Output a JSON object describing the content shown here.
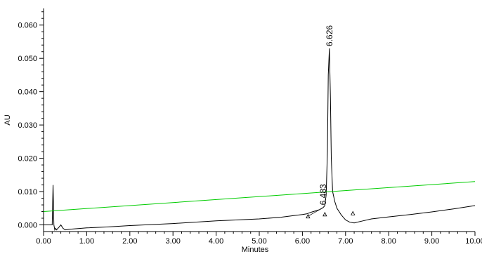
{
  "chart_data": {
    "type": "line",
    "xlabel": "Minutes",
    "ylabel": "AU",
    "xlim": [
      0.0,
      10.0
    ],
    "ylim": [
      -0.002,
      0.065
    ],
    "x_ticks": [
      "0.00",
      "1.00",
      "2.00",
      "3.00",
      "4.00",
      "5.00",
      "6.00",
      "7.00",
      "8.00",
      "9.00",
      "10.00"
    ],
    "y_ticks": [
      "0.000",
      "0.010",
      "0.020",
      "0.030",
      "0.040",
      "0.050",
      "0.060"
    ],
    "grid": false,
    "series": [
      {
        "color": "#000000",
        "x": [
          0.0,
          0.2,
          0.22,
          0.24,
          0.26,
          0.28,
          0.3,
          0.35,
          0.4,
          0.45,
          0.5,
          0.55,
          0.6,
          0.7,
          0.8,
          0.9,
          1.0,
          1.5,
          2.0,
          3.0,
          4.0,
          5.0,
          5.5,
          5.8,
          6.0,
          6.1,
          6.2,
          6.3,
          6.4,
          6.48,
          6.52,
          6.55,
          6.58,
          6.6,
          6.626,
          6.65,
          6.67,
          6.7,
          6.75,
          6.8,
          6.9,
          7.0,
          7.1,
          7.2,
          7.4,
          7.6,
          8.0,
          8.5,
          9.0,
          9.5,
          10.0
        ],
        "y": [
          0.0,
          0.0,
          0.012,
          0.0,
          -0.0015,
          -0.001,
          -0.0015,
          -0.0008,
          0.0,
          -0.001,
          -0.0015,
          -0.0014,
          -0.0013,
          -0.0012,
          -0.0011,
          -0.001,
          -0.0009,
          -0.0006,
          -0.0002,
          0.0004,
          0.0012,
          0.0018,
          0.0023,
          0.0028,
          0.0031,
          0.0033,
          0.0038,
          0.0042,
          0.0046,
          0.0052,
          0.0058,
          0.009,
          0.022,
          0.045,
          0.053,
          0.038,
          0.02,
          0.01,
          0.007,
          0.005,
          0.003,
          0.0015,
          0.0008,
          0.0006,
          0.0012,
          0.0018,
          0.0024,
          0.0031,
          0.0039,
          0.0048,
          0.0058
        ]
      },
      {
        "color": "#00cc00",
        "x": [
          0.0,
          10.0
        ],
        "y": [
          0.004,
          0.013
        ]
      }
    ],
    "annotations": [
      {
        "text": "6.626",
        "x": 6.626,
        "y": 0.053
      },
      {
        "text": "6.483",
        "x": 6.483,
        "y": 0.0053
      }
    ],
    "markers": [
      {
        "x": 6.13,
        "y": 0.0026
      },
      {
        "x": 6.52,
        "y": 0.0032
      },
      {
        "x": 7.17,
        "y": 0.0035
      }
    ]
  }
}
